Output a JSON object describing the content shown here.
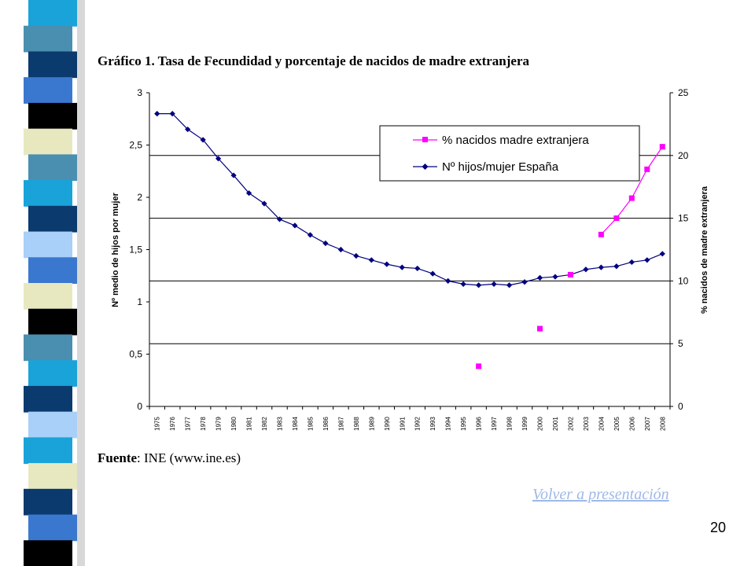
{
  "slide": {
    "title": "Gráfico 1. Tasa de Fecundidad y porcentaje de nacidos de madre extranjera",
    "source_label": "Fuente",
    "source_text": ": INE (www.ine.es)",
    "back_link": "Volver a presentación",
    "page_number": "20",
    "stripe_colors": [
      "#1aa3d9",
      "#4a8fb0",
      "#0a3a6e",
      "#3a78d0",
      "#000000",
      "#e8e8c0",
      "#4a8fb0",
      "#1aa3d9",
      "#0a3a6e",
      "#a8d0f8",
      "#3a78d0",
      "#e8e8c0",
      "#000000",
      "#4a8fb0",
      "#1aa3d9",
      "#0a3a6e",
      "#a8d0f8",
      "#1aa3d9",
      "#e8e8c0",
      "#0a3a6e",
      "#3a78d0",
      "#000000"
    ]
  },
  "chart_data": {
    "type": "line",
    "title": "Gráfico 1. Tasa de Fecundidad y porcentaje de nacidos de madre extranjera",
    "x": [
      "1975",
      "1976",
      "1977",
      "1978",
      "1979",
      "1980",
      "1981",
      "1982",
      "1983",
      "1984",
      "1985",
      "1986",
      "1987",
      "1988",
      "1989",
      "1990",
      "1991",
      "1992",
      "1993",
      "1994",
      "1995",
      "1996",
      "1997",
      "1998",
      "1999",
      "2000",
      "2001",
      "2002",
      "2003",
      "2004",
      "2005",
      "2006",
      "2007",
      "2008"
    ],
    "x_tick_labels": [
      "1975",
      "1976",
      "1977",
      "1978",
      "1979",
      "1980",
      "1981",
      "1982",
      "1983",
      "1984",
      "1985",
      "1986",
      "1987",
      "1988",
      "1989",
      "1990",
      "1991",
      "1992",
      "1993",
      "1994",
      "1995",
      "1996",
      "1997",
      "1998",
      "1999",
      "2000",
      "2001",
      "2002",
      "2003",
      "2004",
      "2005",
      "2006",
      "2007",
      "2008"
    ],
    "ylabel": "Nº medio de hijos por mujer",
    "y2label": "% nacidos de madre extranjera",
    "ylim": [
      0,
      3
    ],
    "y2lim": [
      0,
      25
    ],
    "y_ticks": [
      "0",
      "0,5",
      "1",
      "1,5",
      "2",
      "2,5",
      "3"
    ],
    "y2_ticks": [
      "0",
      "5",
      "10",
      "15",
      "20",
      "25"
    ],
    "gridlines": "horizontal at right-axis ticks 5, 10, 15, 20",
    "legend_position": "upper-right inside plot",
    "series": [
      {
        "name": "% nacidos madre extranjera",
        "axis": "right",
        "color": "#ff00ff",
        "marker": "square",
        "values": [
          null,
          null,
          null,
          null,
          null,
          null,
          null,
          null,
          null,
          null,
          null,
          null,
          null,
          null,
          null,
          null,
          null,
          null,
          null,
          null,
          null,
          3.2,
          null,
          null,
          null,
          6.2,
          null,
          10.5,
          null,
          13.7,
          15.0,
          16.6,
          18.9,
          20.7
        ],
        "connected_from_index": 29
      },
      {
        "name": "Nº hijos/mujer España",
        "axis": "left",
        "color": "#00007f",
        "marker": "diamond",
        "values": [
          2.8,
          2.8,
          2.65,
          2.55,
          2.37,
          2.21,
          2.04,
          1.94,
          1.79,
          1.73,
          1.64,
          1.56,
          1.5,
          1.44,
          1.4,
          1.36,
          1.33,
          1.32,
          1.27,
          1.2,
          1.17,
          1.16,
          1.17,
          1.16,
          1.19,
          1.23,
          1.24,
          1.26,
          1.31,
          1.33,
          1.34,
          1.38,
          1.4,
          1.46
        ]
      }
    ]
  }
}
